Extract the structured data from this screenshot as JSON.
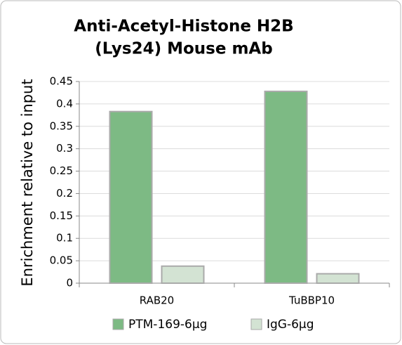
{
  "chart_data": {
    "type": "bar",
    "title": [
      "Anti-Acetyl-Histone H2B",
      "(Lys24) Mouse mAb"
    ],
    "y_label": "Enrichment relative to input",
    "categories": [
      "RAB20",
      "TuBBP10"
    ],
    "series": [
      {
        "name": "PTM-169-6μg",
        "color": "#7dba84",
        "values": [
          0.383,
          0.428
        ]
      },
      {
        "name": "IgG-6μg",
        "color": "#d3e3d3",
        "values": [
          0.038,
          0.021
        ]
      }
    ],
    "ylim": [
      0,
      0.45
    ],
    "yticks": [
      0,
      0.05,
      0.1,
      0.15,
      0.2,
      0.25,
      0.3,
      0.35,
      0.4,
      0.45
    ],
    "grid": true
  }
}
